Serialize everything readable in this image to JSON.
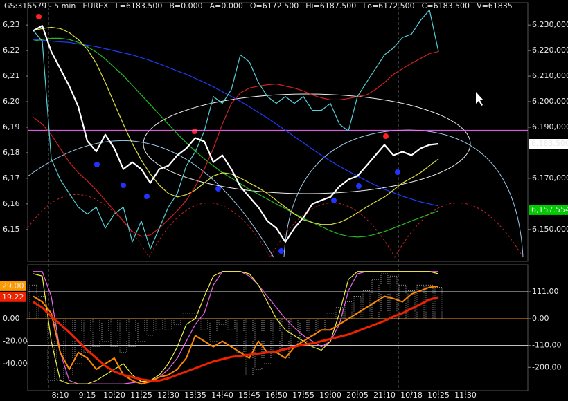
{
  "chart_data": [
    {
      "type": "line",
      "header": [
        {
          "text": "GS:316579 - 5 min",
          "color": "#ffffff"
        },
        {
          "text": "EUREX",
          "color": "#ffffff"
        },
        {
          "text": "L=6183.500",
          "color": "#00ff00"
        },
        {
          "text": "B=0.000",
          "color": "#ffffff"
        },
        {
          "text": "A=0.000",
          "color": "#ffffff"
        },
        {
          "text": "O=6172.500",
          "color": "#00ff00"
        },
        {
          "text": "Hi=6187.500",
          "color": "#ffffff"
        },
        {
          "text": "Lo=6172.500",
          "color": "#ffffff"
        },
        {
          "text": "C=6183.500",
          "color": "#00ff00"
        },
        {
          "text": "V=61835",
          "color": "#ffffff"
        }
      ],
      "ylim": [
        6137.5,
        6238.7
      ],
      "yticks": [
        {
          "value": 6230,
          "label": "6,23"
        },
        {
          "value": 6220,
          "label": "6,22"
        },
        {
          "value": 6210,
          "label": "6,21"
        },
        {
          "value": 6200,
          "label": "6,20"
        },
        {
          "value": 6190,
          "label": "6,19"
        },
        {
          "value": 6180,
          "label": "6,18"
        },
        {
          "value": 6170,
          "label": "6,17"
        },
        {
          "value": 6160,
          "label": "6,16"
        },
        {
          "value": 6150,
          "label": "6,15"
        }
      ],
      "y2lim": [
        6137.5,
        6238.7
      ],
      "y2ticks": [
        {
          "value": 6230,
          "label": "6,230,000"
        },
        {
          "value": 6220,
          "label": "6,220,000"
        },
        {
          "value": 6210,
          "label": "6,210,000"
        },
        {
          "value": 6200,
          "label": "6,200,000"
        },
        {
          "value": 6190,
          "label": "6,190,000"
        },
        {
          "value": 6170,
          "label": "6,170,000"
        },
        {
          "value": 6150,
          "label": "6,150,000"
        }
      ],
      "reference_lines": [
        {
          "value": 6188.8,
          "color": "#ff66ff"
        },
        {
          "value": 6188.5,
          "color": "#ffffff"
        }
      ],
      "badges": [
        {
          "label": "6,183.500",
          "value": 6183.5,
          "color": "#ffffff",
          "side": "right"
        },
        {
          "label": "6,157.554",
          "value": 6157.554,
          "color": "#00cc00",
          "side": "right"
        }
      ],
      "series": [
        {
          "color": "#1e3cff",
          "values": [
            6224.3,
            6224.0,
            6223.7,
            6223.4,
            6223.2,
            6222.6,
            6222.1,
            6221.5,
            6220.7,
            6219.9,
            6219.1,
            6218.3,
            6217.2,
            6216.1,
            6214.8,
            6213.4,
            6212.0,
            6210.7,
            6209.1,
            6207.5,
            6205.8,
            6203.9,
            6202.0,
            6200.1,
            6198.0,
            6195.8,
            6193.6,
            6191.2,
            6188.8,
            6186.3,
            6183.9,
            6181.4,
            6179.0,
            6176.8,
            6174.7,
            6172.8,
            6170.9,
            6169.0,
            6167.3,
            6165.7,
            6164.4,
            6163.0,
            6161.9,
            6160.8,
            6160.0,
            6159.2,
            null,
            null,
            null
          ]
        },
        {
          "color": "#22bb22",
          "values": [
            6223.7,
            6224.3,
            6224.8,
            6224.8,
            6224.3,
            6223.2,
            6221.5,
            6219.4,
            6216.7,
            6213.4,
            6210.2,
            6206.4,
            6202.6,
            6198.8,
            6195.0,
            6191.2,
            6187.4,
            6183.9,
            6180.6,
            6177.6,
            6174.9,
            6172.2,
            6170.1,
            6167.9,
            6165.7,
            6163.8,
            6161.9,
            6160.0,
            6158.1,
            6156.2,
            6154.3,
            6152.7,
            6151.1,
            6149.5,
            6148.1,
            6147.3,
            6147.0,
            6147.3,
            6148.1,
            6149.2,
            6150.5,
            6151.9,
            6153.3,
            6154.6,
            6156.0,
            6157.3,
            null,
            null,
            null
          ]
        },
        {
          "color": "#e0e040",
          "values": [
            6227.8,
            6228.6,
            6229.1,
            6228.6,
            6227.0,
            6224.3,
            6220.5,
            6215.0,
            6207.5,
            6199.3,
            6191.2,
            6183.6,
            6177.1,
            6171.7,
            6167.3,
            6164.1,
            6162.7,
            6163.6,
            6165.4,
            6168.2,
            6170.9,
            6172.2,
            6171.7,
            6170.1,
            6168.2,
            6166.3,
            6164.1,
            6161.4,
            6158.7,
            6156.0,
            6153.8,
            6152.7,
            6151.9,
            6151.9,
            6152.7,
            6154.3,
            6156.5,
            6158.7,
            6160.8,
            6162.7,
            6165.4,
            6168.2,
            6170.1,
            6172.2,
            6174.9,
            6177.6,
            null,
            null,
            null
          ]
        },
        {
          "color": "#cc2222",
          "values": [
            6193.9,
            6191.2,
            6187.1,
            6181.7,
            6176.3,
            6172.2,
            6169.0,
            6165.4,
            6161.4,
            6157.3,
            6153.3,
            6149.2,
            6147.3,
            6147.8,
            6150.5,
            6153.8,
            6157.3,
            6161.4,
            6166.8,
            6173.6,
            6181.7,
            6191.2,
            6199.3,
            6203.4,
            6205.3,
            6206.1,
            6206.6,
            6206.9,
            6206.1,
            6205.3,
            6204.2,
            6202.6,
            6201.5,
            6200.7,
            6200.7,
            6201.2,
            6202.0,
            6202.6,
            6204.7,
            6207.5,
            6210.7,
            6212.9,
            6215.0,
            6216.9,
            6218.8,
            6219.6,
            null,
            null,
            null
          ]
        },
        {
          "color": "#55d0d8",
          "values": [
            6227.8,
            6223.7,
            6177.6,
            6169.5,
            6164.1,
            6158.7,
            6156.0,
            6158.7,
            6150.5,
            6156.0,
            6158.7,
            6145.1,
            6153.3,
            6142.4,
            6150.5,
            6158.7,
            6164.1,
            6174.9,
            6180.4,
            6188.5,
            6202.0,
            6199.3,
            6204.7,
            6218.3,
            6215.6,
            6207.5,
            6202.0,
            6199.3,
            6202.0,
            6199.3,
            6202.0,
            6196.6,
            6196.6,
            6199.3,
            6191.2,
            6188.5,
            6202.0,
            6207.5,
            6212.9,
            6218.3,
            6221.0,
            6225.1,
            6226.4,
            6231.8,
            6235.9,
            6219.6,
            null,
            null,
            null
          ]
        },
        {
          "color": "#ffffff",
          "width": 2.2,
          "values": [
            6227.8,
            6229.7,
            6219.6,
            6212.9,
            6206.1,
            6198.0,
            6184.6,
            6180.5,
            6187.1,
            6181.7,
            6173.6,
            6176.3,
            6173.6,
            6168.2,
            6173.6,
            6174.9,
            6179.0,
            6181.7,
            6185.8,
            6184.4,
            6176.3,
            6179.0,
            6173.6,
            6166.8,
            6162.7,
            6158.7,
            6153.3,
            6150.5,
            6145.1,
            6150.5,
            6154.6,
            6160.0,
            6161.4,
            6162.7,
            6166.8,
            6169.5,
            6170.9,
            6174.9,
            6179.0,
            6183.1,
            6179.0,
            6180.4,
            6179.0,
            6181.7,
            6183.1,
            6183.5,
            null,
            null,
            null
          ]
        }
      ]
    },
    {
      "type": "line",
      "categories": [
        null,
        null,
        null,
        "8:10",
        null,
        null,
        "9:15",
        null,
        null,
        "10:20",
        null,
        null,
        "11:25",
        null,
        null,
        "12:30",
        null,
        null,
        "13:35",
        null,
        null,
        "14:40",
        null,
        null,
        "15:45",
        null,
        null,
        "16:50",
        null,
        null,
        "17:55",
        null,
        null,
        "19:00",
        null,
        null,
        "20:05",
        null,
        null,
        "21:10",
        null,
        null,
        "10/18",
        null,
        null,
        "10:25",
        null,
        null,
        "11:30"
      ],
      "ylim": [
        -64,
        48
      ],
      "yticks": [
        {
          "value": 0,
          "label": "0.00"
        },
        {
          "value": -20,
          "label": "-20.00"
        },
        {
          "value": -40,
          "label": "-40.00"
        }
      ],
      "y2lim": [
        -296,
        222
      ],
      "y2ticks": [
        {
          "value": 111,
          "label": "111.00"
        },
        {
          "value": 0,
          "label": "0.00"
        },
        {
          "value": -110,
          "label": "-110.00"
        },
        {
          "value": -200,
          "label": "-200.00"
        }
      ],
      "reference_lines": [
        {
          "value": 111,
          "color": "#dddddd",
          "axis": "y2"
        },
        {
          "value": -110,
          "color": "#dddddd",
          "axis": "y2"
        },
        {
          "value": 0,
          "color": "#ff9900"
        }
      ],
      "badges": [
        {
          "label": "29.00",
          "value": 29,
          "color": "#ff9900",
          "side": "left"
        },
        {
          "label": "19.22",
          "value": 19.22,
          "color": "#ee2200",
          "side": "left"
        }
      ],
      "series": [
        {
          "color": "#bbbbbb",
          "style": "bars",
          "values": [
            30,
            20,
            -55,
            -55,
            -50,
            -40,
            -30,
            -25,
            -20,
            -25,
            -30,
            -25,
            -20,
            -15,
            -10,
            -10,
            -5,
            5,
            5,
            -10,
            -20,
            -5,
            -10,
            -30,
            -50,
            -45,
            -40,
            -30,
            -35,
            -25,
            -20,
            -15,
            -10,
            5,
            10,
            15,
            20,
            25,
            35,
            40,
            38,
            30,
            25,
            30,
            30,
            28,
            null,
            null,
            null
          ]
        },
        {
          "color": "#ee66ee",
          "values": [
            42,
            42,
            20,
            -30,
            -55,
            -58,
            -58,
            -58,
            -58,
            -58,
            -58,
            -57,
            -56,
            -55,
            -52,
            -45,
            -35,
            -20,
            -5,
            5,
            30,
            42,
            42,
            42,
            38,
            30,
            20,
            10,
            0,
            -8,
            -15,
            -20,
            -25,
            -20,
            -5,
            25,
            40,
            42,
            42,
            42,
            42,
            42,
            42,
            42,
            42,
            42,
            null,
            null,
            null
          ]
        },
        {
          "color": "#f0f040",
          "values": [
            40,
            38,
            -20,
            -55,
            -58,
            -58,
            -58,
            -55,
            -50,
            -45,
            -40,
            -50,
            -56,
            -55,
            -50,
            -40,
            -25,
            -5,
            0,
            20,
            38,
            42,
            42,
            42,
            40,
            30,
            15,
            0,
            -10,
            -15,
            -20,
            -25,
            -28,
            -20,
            5,
            35,
            42,
            42,
            42,
            42,
            42,
            42,
            42,
            42,
            42,
            40,
            null,
            null,
            null
          ]
        },
        {
          "color": "#ff8800",
          "width": 2,
          "values": [
            20,
            15,
            5,
            -30,
            -45,
            -30,
            -35,
            -45,
            -40,
            -35,
            -50,
            -55,
            -58,
            -56,
            -52,
            -50,
            -45,
            -35,
            -15,
            -20,
            -25,
            -20,
            -25,
            -30,
            -35,
            -20,
            -30,
            -30,
            -35,
            -25,
            -20,
            -15,
            -10,
            -10,
            -5,
            0,
            5,
            10,
            15,
            20,
            18,
            15,
            22,
            25,
            28,
            29,
            null,
            null,
            null
          ]
        },
        {
          "color": "#ee2200",
          "width": 3,
          "values": [
            15,
            10,
            2,
            -5,
            -12,
            -20,
            -28,
            -35,
            -42,
            -47,
            -50,
            -52,
            -54,
            -55,
            -55,
            -53,
            -50,
            -47,
            -44,
            -41,
            -38,
            -36,
            -34,
            -33,
            -32,
            -31,
            -30,
            -29,
            -27,
            -25,
            -23,
            -22,
            -20,
            -18,
            -16,
            -14,
            -11,
            -8,
            -5,
            -2,
            2,
            5,
            9,
            13,
            17,
            19.22,
            null,
            null,
            null
          ]
        }
      ]
    }
  ]
}
